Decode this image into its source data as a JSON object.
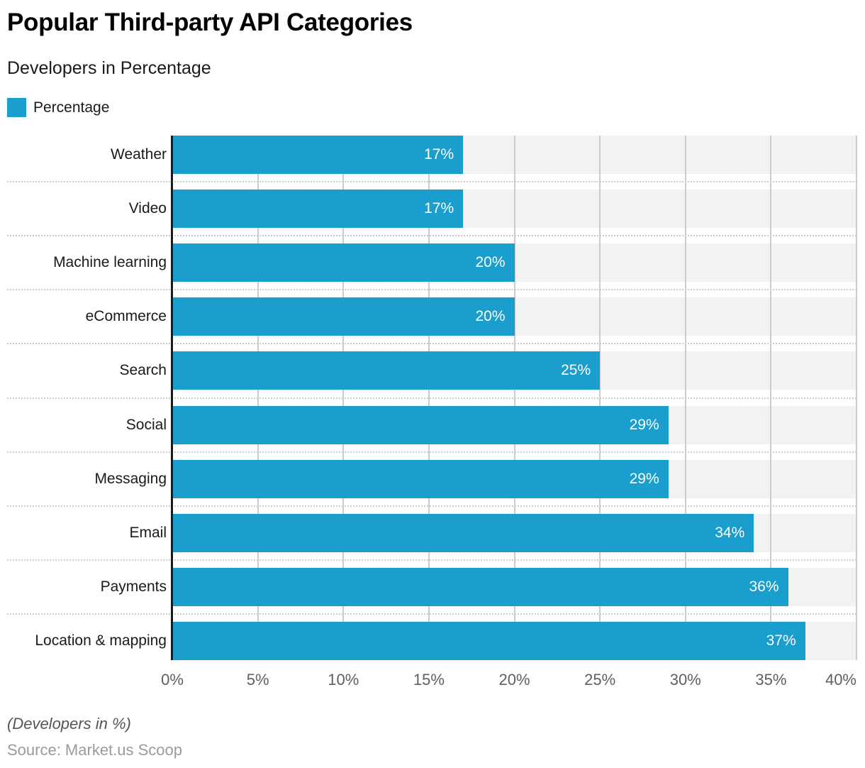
{
  "header": {
    "title": "Popular Third-party API Categories",
    "subtitle": "Developers in Percentage"
  },
  "legend": {
    "label": "Percentage"
  },
  "chart_data": {
    "type": "bar",
    "orientation": "horizontal",
    "title": "Popular Third-party API Categories",
    "subtitle": "Developers in Percentage",
    "series_name": "Percentage",
    "categories": [
      "Weather",
      "Video",
      "Machine learning",
      "eCommerce",
      "Search",
      "Social",
      "Messaging",
      "Email",
      "Payments",
      "Location & mapping"
    ],
    "values": [
      17,
      17,
      20,
      20,
      25,
      29,
      29,
      34,
      36,
      37
    ],
    "value_labels": [
      "17%",
      "17%",
      "20%",
      "20%",
      "25%",
      "29%",
      "29%",
      "34%",
      "36%",
      "37%"
    ],
    "xlabel": "",
    "ylabel": "",
    "xlim": [
      0,
      40
    ],
    "x_ticks": [
      "0%",
      "5%",
      "10%",
      "15%",
      "20%",
      "25%",
      "30%",
      "35%",
      "40%"
    ],
    "x_tick_values": [
      0,
      5,
      10,
      15,
      20,
      25,
      30,
      35,
      40
    ],
    "grid": "vertical",
    "legend_position": "top-left",
    "bar_color": "#199ecd",
    "track_color": "#f2f2f2",
    "gridline_color": "#cccccc",
    "axis_color": "#1a1a1a",
    "value_label_color": "#ffffff"
  },
  "footer": {
    "note": "(Developers in %)",
    "source": "Source: Market.us Scoop"
  }
}
